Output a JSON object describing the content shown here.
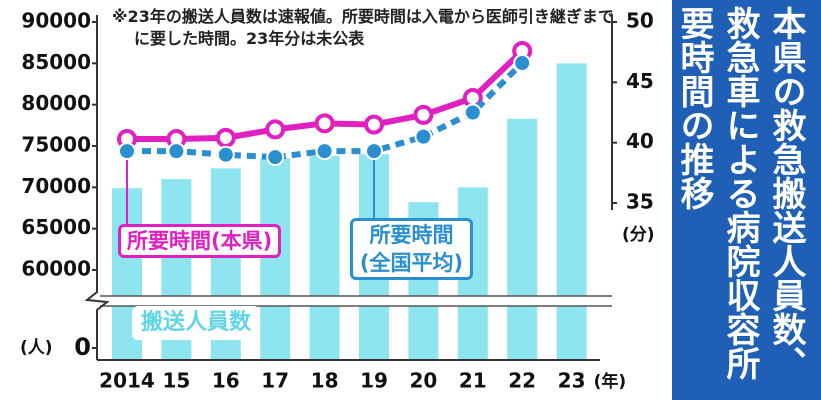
{
  "chart_data": {
    "type": "bar",
    "title": "本県の救急搬送人員数、救急車による病院収容所要時間の推移",
    "note": "※23年の搬送人員数は速報値。所要時間は入電から医師引き継ぎまでに要した時間。23年分は未公表",
    "categories": [
      "2014",
      "15",
      "16",
      "17",
      "18",
      "19",
      "20",
      "21",
      "22",
      "23"
    ],
    "xlabel": "(年)",
    "ylabel": "(人)",
    "y2label": "(分)",
    "series": [
      {
        "name": "搬送人員数",
        "type": "bar",
        "color": "#8ee4ef",
        "values": [
          69900,
          71000,
          72300,
          73500,
          73800,
          74000,
          68200,
          70000,
          78300,
          85000
        ]
      },
      {
        "name": "所要時間(本県)",
        "type": "line",
        "axis": "y2",
        "color": "#e020c0",
        "values": [
          40.3,
          40.3,
          40.4,
          41.1,
          41.6,
          41.5,
          42.3,
          43.7,
          47.6,
          null
        ]
      },
      {
        "name": "所要時間(全国平均)",
        "type": "line",
        "axis": "y2",
        "color": "#2a8fd0",
        "dashed": true,
        "values": [
          39.3,
          39.3,
          39.0,
          38.8,
          39.3,
          39.3,
          40.5,
          42.5,
          46.6,
          null
        ]
      }
    ],
    "ylim": [
      0,
      90000
    ],
    "yticks": [
      0,
      60000,
      65000,
      70000,
      75000,
      80000,
      85000,
      90000
    ],
    "axis_break": true,
    "y2lim": [
      35,
      50
    ],
    "y2ticks": [
      35,
      40,
      45,
      50
    ]
  }
}
